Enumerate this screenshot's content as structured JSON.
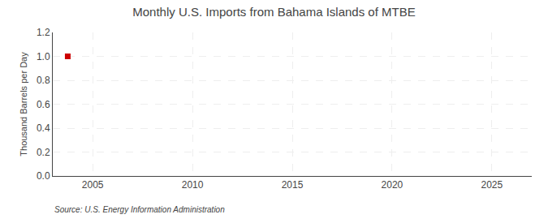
{
  "chart_data": {
    "type": "scatter",
    "title": "Monthly U.S. Imports from Bahama Islands of MTBE",
    "ylabel": "Thousand Barrels per Day",
    "source": "Source: U.S. Energy Information Administration",
    "x": [
      2003.75
    ],
    "values": [
      1.0
    ],
    "color": "#cc0000",
    "marker": "square",
    "xlim": [
      2003.0,
      2027.0
    ],
    "xticks": [
      2005,
      2010,
      2015,
      2020,
      2025
    ],
    "ylim": [
      0.0,
      1.2
    ],
    "yticks": [
      {
        "value": 0.0,
        "label": "0.0"
      },
      0.2,
      0.4,
      0.6,
      0.8,
      {
        "value": 1.0,
        "label": "1.0"
      },
      1.2
    ],
    "grid": true
  }
}
